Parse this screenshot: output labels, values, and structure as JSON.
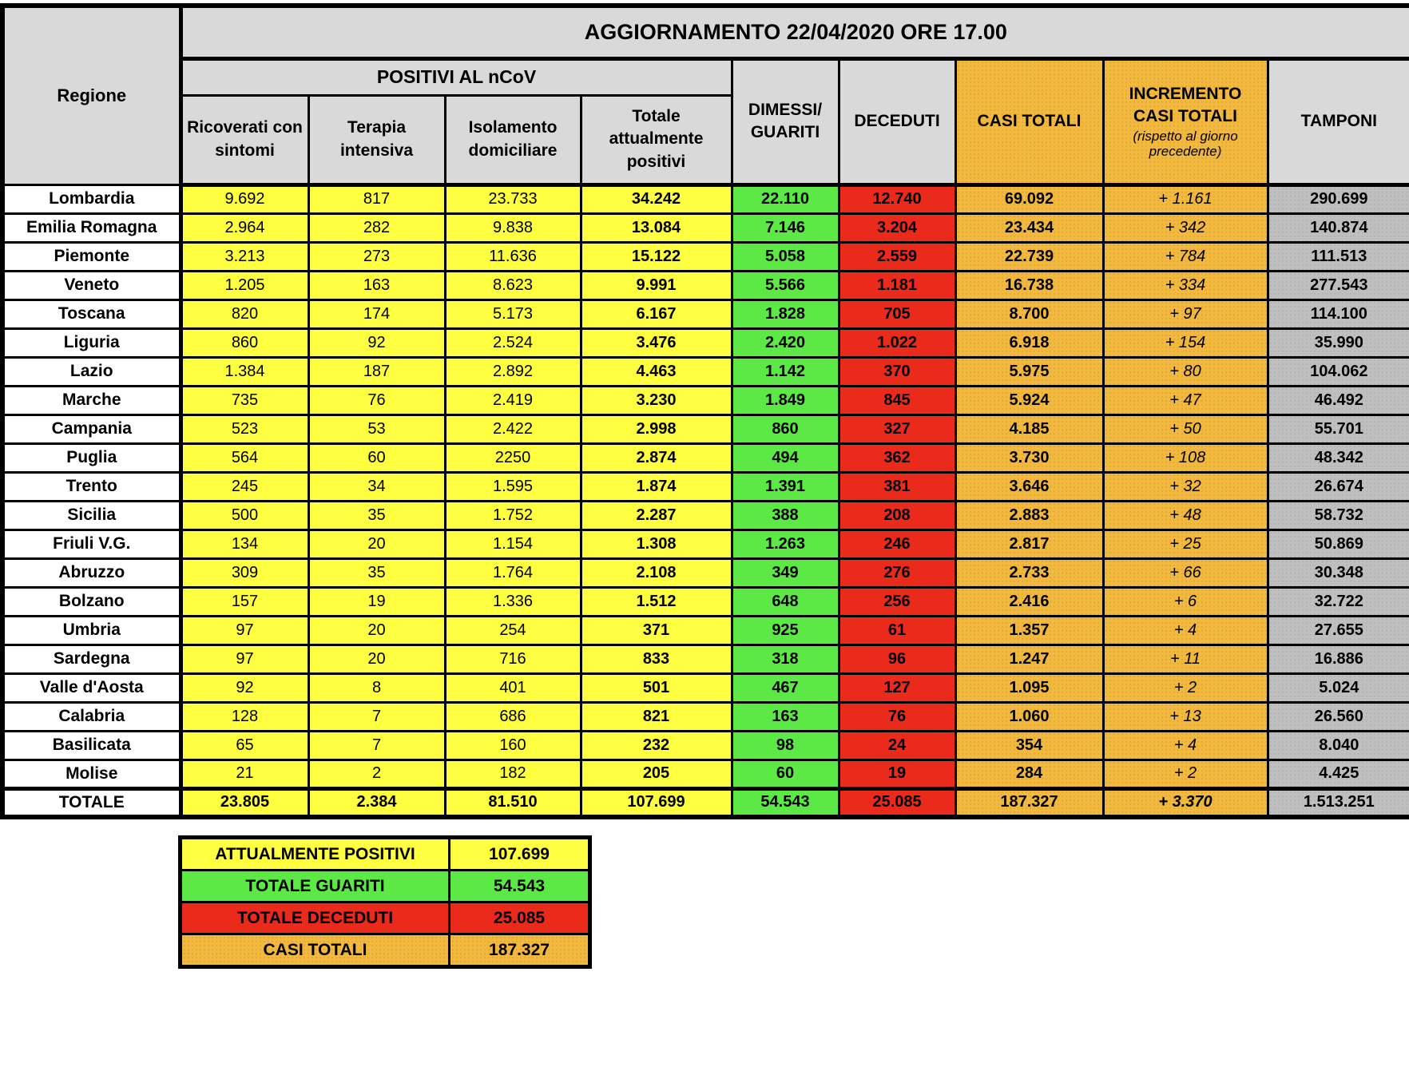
{
  "colors": {
    "yellow": "#FFFF42",
    "green": "#5CE845",
    "red": "#EA2B1C",
    "orange": "#F2B93E",
    "header_gray": "#D9D9D9",
    "tamponi_gray": "#BFBFBF",
    "border": "#000000"
  },
  "chart_data": {
    "type": "table",
    "title": "AGGIORNAMENTO 22/04/2020 ORE 17.00",
    "header": {
      "regione": "Regione",
      "positivi_group": "POSITIVI AL nCoV",
      "ricoverati": "Ricoverati con sintomi",
      "terapia": "Terapia intensiva",
      "isolamento": "Isolamento domiciliare",
      "totale_positivi": "Totale attualmente positivi",
      "dimessi_line1": "DIMESSI/",
      "dimessi_line2": "GUARITI",
      "deceduti": "DECEDUTI",
      "casi_totali": "CASI TOTALI",
      "incremento_line1": "INCREMENTO",
      "incremento_line2": "CASI  TOTALI",
      "incremento_note": "(rispetto al giorno precedente)",
      "tamponi": "TAMPONI"
    },
    "columns": [
      "Regione",
      "Ricoverati con sintomi",
      "Terapia intensiva",
      "Isolamento domiciliare",
      "Totale attualmente positivi",
      "DIMESSI/GUARITI",
      "DECEDUTI",
      "CASI TOTALI",
      "INCREMENTO CASI TOTALI (rispetto al giorno precedente)",
      "TAMPONI"
    ],
    "rows": [
      {
        "name": "Lombardia",
        "values": [
          "9.692",
          "817",
          "23.733",
          "34.242",
          "22.110",
          "12.740",
          "69.092",
          "+ 1.161",
          "290.699"
        ]
      },
      {
        "name": "Emilia Romagna",
        "values": [
          "2.964",
          "282",
          "9.838",
          "13.084",
          "7.146",
          "3.204",
          "23.434",
          "+ 342",
          "140.874"
        ]
      },
      {
        "name": "Piemonte",
        "values": [
          "3.213",
          "273",
          "11.636",
          "15.122",
          "5.058",
          "2.559",
          "22.739",
          "+ 784",
          "111.513"
        ]
      },
      {
        "name": "Veneto",
        "values": [
          "1.205",
          "163",
          "8.623",
          "9.991",
          "5.566",
          "1.181",
          "16.738",
          "+ 334",
          "277.543"
        ]
      },
      {
        "name": "Toscana",
        "values": [
          "820",
          "174",
          "5.173",
          "6.167",
          "1.828",
          "705",
          "8.700",
          "+ 97",
          "114.100"
        ]
      },
      {
        "name": "Liguria",
        "values": [
          "860",
          "92",
          "2.524",
          "3.476",
          "2.420",
          "1.022",
          "6.918",
          "+ 154",
          "35.990"
        ]
      },
      {
        "name": "Lazio",
        "values": [
          "1.384",
          "187",
          "2.892",
          "4.463",
          "1.142",
          "370",
          "5.975",
          "+ 80",
          "104.062"
        ]
      },
      {
        "name": "Marche",
        "values": [
          "735",
          "76",
          "2.419",
          "3.230",
          "1.849",
          "845",
          "5.924",
          "+ 47",
          "46.492"
        ]
      },
      {
        "name": "Campania",
        "values": [
          "523",
          "53",
          "2.422",
          "2.998",
          "860",
          "327",
          "4.185",
          "+ 50",
          "55.701"
        ]
      },
      {
        "name": "Puglia",
        "values": [
          "564",
          "60",
          "2250",
          "2.874",
          "494",
          "362",
          "3.730",
          "+ 108",
          "48.342"
        ]
      },
      {
        "name": "Trento",
        "values": [
          "245",
          "34",
          "1.595",
          "1.874",
          "1.391",
          "381",
          "3.646",
          "+ 32",
          "26.674"
        ]
      },
      {
        "name": "Sicilia",
        "values": [
          "500",
          "35",
          "1.752",
          "2.287",
          "388",
          "208",
          "2.883",
          "+ 48",
          "58.732"
        ]
      },
      {
        "name": "Friuli V.G.",
        "values": [
          "134",
          "20",
          "1.154",
          "1.308",
          "1.263",
          "246",
          "2.817",
          "+ 25",
          "50.869"
        ]
      },
      {
        "name": "Abruzzo",
        "values": [
          "309",
          "35",
          "1.764",
          "2.108",
          "349",
          "276",
          "2.733",
          "+ 66",
          "30.348"
        ]
      },
      {
        "name": "Bolzano",
        "values": [
          "157",
          "19",
          "1.336",
          "1.512",
          "648",
          "256",
          "2.416",
          "+ 6",
          "32.722"
        ]
      },
      {
        "name": "Umbria",
        "values": [
          "97",
          "20",
          "254",
          "371",
          "925",
          "61",
          "1.357",
          "+ 4",
          "27.655"
        ]
      },
      {
        "name": "Sardegna",
        "values": [
          "97",
          "20",
          "716",
          "833",
          "318",
          "96",
          "1.247",
          "+ 11",
          "16.886"
        ]
      },
      {
        "name": "Valle d'Aosta",
        "values": [
          "92",
          "8",
          "401",
          "501",
          "467",
          "127",
          "1.095",
          "+ 2",
          "5.024"
        ]
      },
      {
        "name": "Calabria",
        "values": [
          "128",
          "7",
          "686",
          "821",
          "163",
          "76",
          "1.060",
          "+ 13",
          "26.560"
        ]
      },
      {
        "name": "Basilicata",
        "values": [
          "65",
          "7",
          "160",
          "232",
          "98",
          "24",
          "354",
          "+ 4",
          "8.040"
        ]
      },
      {
        "name": "Molise",
        "values": [
          "21",
          "2",
          "182",
          "205",
          "60",
          "19",
          "284",
          "+ 2",
          "4.425"
        ]
      }
    ],
    "totale": {
      "name": "TOTALE",
      "values": [
        "23.805",
        "2.384",
        "81.510",
        "107.699",
        "54.543",
        "25.085",
        "187.327",
        "+ 3.370",
        "1.513.251"
      ]
    },
    "summary": [
      {
        "label": "ATTUALMENTE POSITIVI",
        "value": "107.699",
        "color": "yellow"
      },
      {
        "label": "TOTALE GUARITI",
        "value": "54.543",
        "color": "green"
      },
      {
        "label": "TOTALE DECEDUTI",
        "value": "25.085",
        "color": "red"
      },
      {
        "label": "CASI TOTALI",
        "value": "187.327",
        "color": "orange"
      }
    ]
  }
}
